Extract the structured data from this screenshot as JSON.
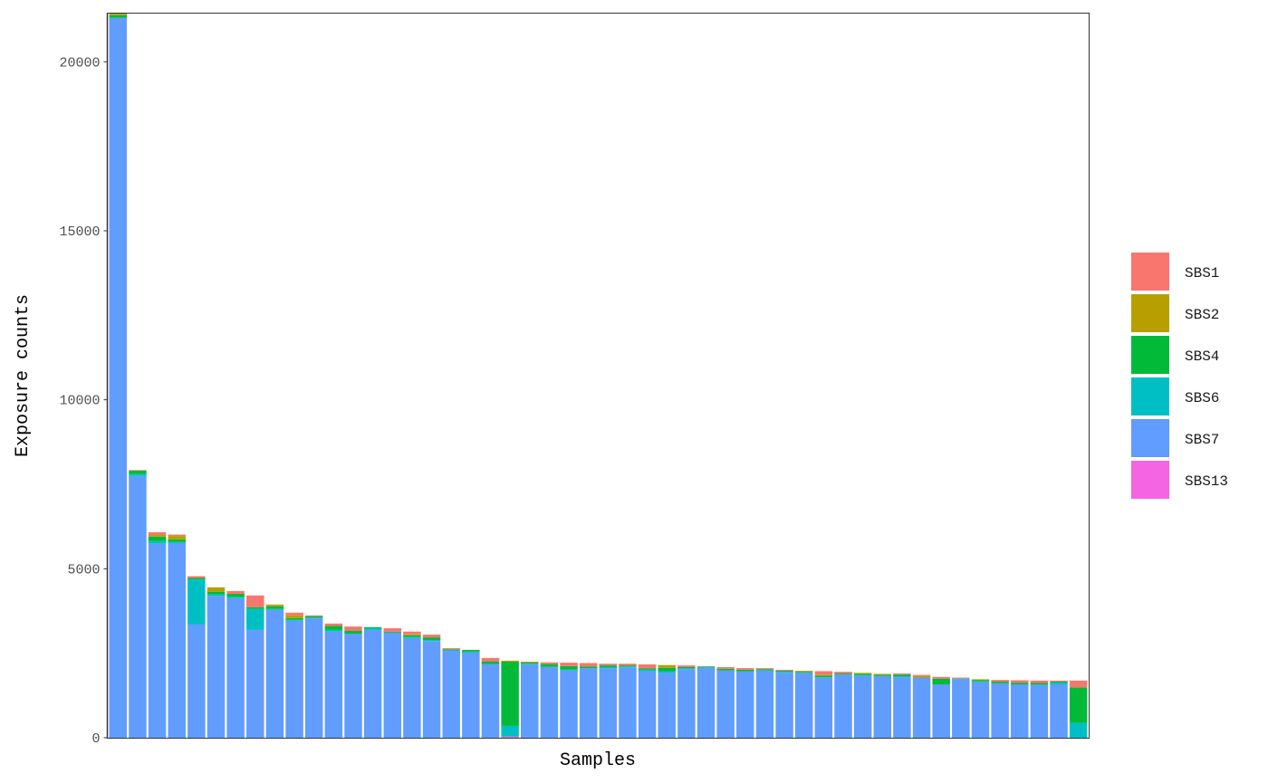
{
  "chart_data": {
    "type": "bar",
    "stacked": true,
    "xlabel": "Samples",
    "ylabel": "Exposure counts",
    "ylim": [
      0,
      21440
    ],
    "yticks": [
      0,
      5000,
      10000,
      15000,
      20000
    ],
    "grid": false,
    "legend_position": "right",
    "x_tick_labels_shown": false,
    "series": [
      {
        "name": "SBS1",
        "color": "#F8766D",
        "values": [
          0,
          20,
          80,
          40,
          50,
          0,
          80,
          350,
          0,
          80,
          30,
          70,
          130,
          0,
          100,
          80,
          80,
          30,
          0,
          100,
          0,
          0,
          50,
          100,
          100,
          50,
          50,
          120,
          0,
          50,
          0,
          50,
          50,
          30,
          30,
          0,
          100,
          50,
          0,
          0,
          30,
          30,
          50,
          30,
          0,
          50,
          70,
          70,
          30,
          200
        ]
      },
      {
        "name": "SBS2",
        "color": "#B79F00",
        "values": [
          50,
          0,
          50,
          100,
          0,
          130,
          0,
          0,
          50,
          80,
          0,
          0,
          0,
          0,
          0,
          30,
          0,
          0,
          0,
          0,
          30,
          30,
          0,
          0,
          0,
          0,
          0,
          0,
          80,
          0,
          0,
          0,
          0,
          0,
          0,
          30,
          30,
          0,
          30,
          30,
          0,
          50,
          0,
          0,
          30,
          0,
          0,
          0,
          0,
          0
        ]
      },
      {
        "name": "SBS4",
        "color": "#00BA38",
        "values": [
          80,
          100,
          130,
          80,
          50,
          80,
          100,
          50,
          80,
          50,
          30,
          120,
          80,
          30,
          30,
          50,
          80,
          20,
          50,
          80,
          1900,
          30,
          80,
          100,
          50,
          50,
          30,
          30,
          100,
          30,
          30,
          50,
          50,
          30,
          30,
          30,
          50,
          30,
          30,
          30,
          50,
          0,
          170,
          0,
          30,
          50,
          50,
          50,
          30,
          1050
        ]
      },
      {
        "name": "SBS6",
        "color": "#00BFC4",
        "values": [
          0,
          50,
          80,
          30,
          1330,
          40,
          30,
          620,
          30,
          30,
          30,
          50,
          0,
          50,
          0,
          30,
          30,
          30,
          30,
          0,
          320,
          30,
          0,
          30,
          0,
          30,
          30,
          50,
          50,
          30,
          0,
          0,
          0,
          30,
          30,
          0,
          0,
          0,
          30,
          0,
          30,
          0,
          0,
          30,
          30,
          0,
          0,
          0,
          50,
          440
        ]
      },
      {
        "name": "SBS7",
        "color": "#619CFF",
        "values": [
          21300,
          7750,
          5740,
          5760,
          3350,
          4200,
          4130,
          3190,
          3780,
          3460,
          3530,
          3140,
          3080,
          3190,
          3110,
          2950,
          2860,
          2570,
          2520,
          2180,
          0,
          2160,
          2100,
          1990,
          2060,
          2060,
          2080,
          1970,
          1920,
          2030,
          2080,
          1990,
          1960,
          1970,
          1920,
          1920,
          1790,
          1870,
          1830,
          1830,
          1790,
          1780,
          1580,
          1720,
          1640,
          1610,
          1580,
          1570,
          1580,
          0
        ]
      },
      {
        "name": "SBS13",
        "color": "#F564E3",
        "values": [
          0,
          0,
          0,
          0,
          0,
          0,
          0,
          0,
          0,
          0,
          0,
          0,
          0,
          0,
          0,
          0,
          0,
          0,
          0,
          0,
          30,
          0,
          0,
          0,
          0,
          0,
          0,
          0,
          0,
          0,
          0,
          0,
          0,
          0,
          0,
          0,
          0,
          0,
          0,
          0,
          0,
          0,
          0,
          0,
          0,
          0,
          0,
          0,
          0,
          0
        ]
      }
    ]
  }
}
